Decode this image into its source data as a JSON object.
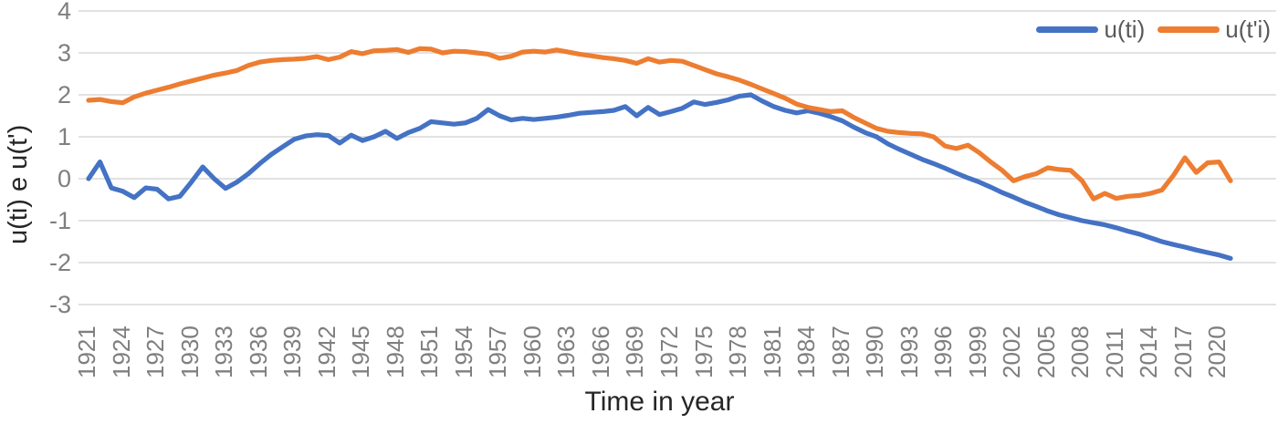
{
  "chart_data": {
    "type": "line",
    "title": "",
    "xlabel": "Time in year",
    "ylabel": "u(ti) e u(t')",
    "ylim": [
      -3,
      4
    ],
    "yticks": [
      4,
      3,
      2,
      1,
      0,
      -1,
      -2,
      -3
    ],
    "grid": "horizontal",
    "grid_color": "#d9d9d9",
    "legend_position": "top-right",
    "x_tick_labels": [
      "1921",
      "1924",
      "1927",
      "1930",
      "1933",
      "1936",
      "1939",
      "1942",
      "1945",
      "1948",
      "1951",
      "1954",
      "1957",
      "1960",
      "1963",
      "1966",
      "1969",
      "1972",
      "1975",
      "1978",
      "1981",
      "1984",
      "1987",
      "1990",
      "1993",
      "1996",
      "1999",
      "2002",
      "2005",
      "2008",
      "2011",
      "2014",
      "2017",
      "2020"
    ],
    "x": [
      1921,
      1922,
      1923,
      1924,
      1925,
      1926,
      1927,
      1928,
      1929,
      1930,
      1931,
      1932,
      1933,
      1934,
      1935,
      1936,
      1937,
      1938,
      1939,
      1940,
      1941,
      1942,
      1943,
      1944,
      1945,
      1946,
      1947,
      1948,
      1949,
      1950,
      1951,
      1952,
      1953,
      1954,
      1955,
      1956,
      1957,
      1958,
      1959,
      1960,
      1961,
      1962,
      1963,
      1964,
      1965,
      1966,
      1967,
      1968,
      1969,
      1970,
      1971,
      1972,
      1973,
      1974,
      1975,
      1976,
      1977,
      1978,
      1979,
      1980,
      1981,
      1982,
      1983,
      1984,
      1985,
      1986,
      1987,
      1988,
      1989,
      1990,
      1991,
      1992,
      1993,
      1994,
      1995,
      1996,
      1997,
      1998,
      1999,
      2000,
      2001,
      2002,
      2003,
      2004,
      2005,
      2006,
      2007,
      2008,
      2009,
      2010,
      2011,
      2012,
      2013,
      2014,
      2015,
      2016,
      2017,
      2018,
      2019,
      2020,
      2021
    ],
    "series": [
      {
        "name": "u(ti)",
        "color": "#4472c4",
        "values": [
          0.0,
          0.4,
          -0.22,
          -0.3,
          -0.45,
          -0.22,
          -0.25,
          -0.48,
          -0.42,
          -0.08,
          0.28,
          0.0,
          -0.23,
          -0.08,
          0.12,
          0.36,
          0.58,
          0.76,
          0.94,
          1.02,
          1.05,
          1.03,
          0.85,
          1.04,
          0.91,
          1.0,
          1.13,
          0.96,
          1.1,
          1.2,
          1.36,
          1.33,
          1.3,
          1.33,
          1.44,
          1.65,
          1.5,
          1.4,
          1.44,
          1.41,
          1.44,
          1.47,
          1.51,
          1.56,
          1.58,
          1.6,
          1.63,
          1.72,
          1.5,
          1.7,
          1.53,
          1.6,
          1.68,
          1.83,
          1.77,
          1.82,
          1.88,
          1.97,
          2.0,
          1.85,
          1.72,
          1.63,
          1.57,
          1.62,
          1.56,
          1.48,
          1.38,
          1.23,
          1.1,
          1.0,
          0.83,
          0.7,
          0.58,
          0.46,
          0.36,
          0.25,
          0.13,
          0.02,
          -0.08,
          -0.2,
          -0.33,
          -0.44,
          -0.56,
          -0.66,
          -0.77,
          -0.86,
          -0.93,
          -1.0,
          -1.05,
          -1.1,
          -1.17,
          -1.25,
          -1.32,
          -1.41,
          -1.5,
          -1.57,
          -1.63,
          -1.7,
          -1.76,
          -1.82,
          -1.9
        ]
      },
      {
        "name": "u(t'i)",
        "color": "#ed7d31",
        "values": [
          1.87,
          1.89,
          1.84,
          1.81,
          1.95,
          2.04,
          2.11,
          2.18,
          2.26,
          2.33,
          2.4,
          2.47,
          2.52,
          2.58,
          2.7,
          2.78,
          2.82,
          2.84,
          2.85,
          2.87,
          2.91,
          2.84,
          2.9,
          3.03,
          2.98,
          3.05,
          3.06,
          3.08,
          3.01,
          3.1,
          3.09,
          3.0,
          3.04,
          3.03,
          3.0,
          2.97,
          2.87,
          2.92,
          3.02,
          3.04,
          3.02,
          3.07,
          3.02,
          2.97,
          2.93,
          2.89,
          2.86,
          2.82,
          2.75,
          2.86,
          2.78,
          2.82,
          2.8,
          2.7,
          2.6,
          2.5,
          2.43,
          2.35,
          2.25,
          2.14,
          2.03,
          1.92,
          1.78,
          1.7,
          1.65,
          1.6,
          1.62,
          1.46,
          1.33,
          1.2,
          1.13,
          1.1,
          1.08,
          1.07,
          1.0,
          0.78,
          0.72,
          0.8,
          0.62,
          0.4,
          0.2,
          -0.05,
          0.05,
          0.12,
          0.26,
          0.22,
          0.2,
          -0.05,
          -0.48,
          -0.35,
          -0.47,
          -0.42,
          -0.4,
          -0.35,
          -0.27,
          0.08,
          0.5,
          0.15,
          0.38,
          0.4,
          -0.05
        ]
      }
    ]
  },
  "axes": {
    "tick_color": "#7f7f7f",
    "title_color": "#262626"
  }
}
